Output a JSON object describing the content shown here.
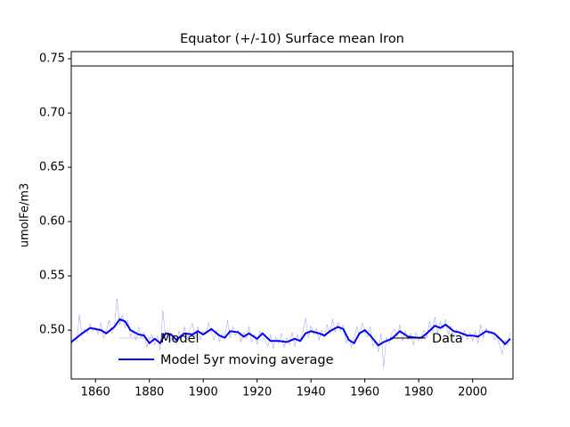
{
  "chart_data": {
    "type": "line",
    "title": "Equator (+/-10) Surface mean Iron",
    "ylabel": "umolFe/m3",
    "xlim": [
      1851,
      2015
    ],
    "ylim": [
      0.455,
      0.7566
    ],
    "xticks": [
      1860,
      1880,
      1900,
      1920,
      1940,
      1960,
      1980,
      2000
    ],
    "yticks": [
      {
        "value": 0.5,
        "label": "0.50"
      },
      0.55,
      {
        "value": 0.6,
        "label": "0.60"
      },
      0.65,
      {
        "value": 0.7,
        "label": "0.70"
      },
      0.75
    ],
    "series": [
      {
        "name": "Model",
        "color": "#0000ff",
        "linewidth": 0.5,
        "opacity": 0.4,
        "x": [
          1851,
          1852,
          1853,
          1854,
          1855,
          1856,
          1857,
          1858,
          1859,
          1860,
          1861,
          1862,
          1863,
          1864,
          1865,
          1866,
          1867,
          1868,
          1869,
          1870,
          1871,
          1872,
          1873,
          1874,
          1875,
          1876,
          1877,
          1878,
          1879,
          1880,
          1881,
          1882,
          1883,
          1884,
          1885,
          1886,
          1887,
          1888,
          1889,
          1890,
          1891,
          1892,
          1893,
          1894,
          1895,
          1896,
          1897,
          1898,
          1899,
          1900,
          1901,
          1902,
          1903,
          1904,
          1905,
          1906,
          1907,
          1908,
          1909,
          1910,
          1911,
          1912,
          1913,
          1914,
          1915,
          1916,
          1917,
          1918,
          1919,
          1920,
          1921,
          1922,
          1923,
          1924,
          1925,
          1926,
          1927,
          1928,
          1929,
          1930,
          1931,
          1932,
          1933,
          1934,
          1935,
          1936,
          1937,
          1938,
          1939,
          1940,
          1941,
          1942,
          1943,
          1944,
          1945,
          1946,
          1947,
          1948,
          1949,
          1950,
          1951,
          1952,
          1953,
          1954,
          1955,
          1956,
          1957,
          1958,
          1959,
          1960,
          1961,
          1962,
          1963,
          1964,
          1965,
          1966,
          1967,
          1968,
          1969,
          1970,
          1971,
          1972,
          1973,
          1974,
          1975,
          1976,
          1977,
          1978,
          1979,
          1980,
          1981,
          1982,
          1983,
          1984,
          1985,
          1986,
          1987,
          1988,
          1989,
          1990,
          1991,
          1992,
          1993,
          1994,
          1995,
          1996,
          1997,
          1998,
          1999,
          2000,
          2001,
          2002,
          2003,
          2004,
          2005,
          2006,
          2007,
          2008,
          2009,
          2010,
          2011,
          2012,
          2013,
          2014
        ],
        "values": [
          0.486,
          0.492,
          0.489,
          0.514,
          0.495,
          0.501,
          0.497,
          0.506,
          0.499,
          0.503,
          0.496,
          0.507,
          0.493,
          0.499,
          0.509,
          0.497,
          0.503,
          0.529,
          0.505,
          0.514,
          0.502,
          0.509,
          0.494,
          0.5,
          0.491,
          0.503,
          0.493,
          0.498,
          0.484,
          0.492,
          0.496,
          0.486,
          0.495,
          0.482,
          0.518,
          0.494,
          0.499,
          0.49,
          0.496,
          0.487,
          0.499,
          0.493,
          0.503,
          0.491,
          0.5,
          0.506,
          0.494,
          0.503,
          0.491,
          0.499,
          0.496,
          0.507,
          0.499,
          0.491,
          0.5,
          0.489,
          0.497,
          0.495,
          0.509,
          0.493,
          0.503,
          0.495,
          0.5,
          0.489,
          0.498,
          0.492,
          0.503,
          0.489,
          0.496,
          0.487,
          0.499,
          0.494,
          0.49,
          0.485,
          0.496,
          0.483,
          0.494,
          0.488,
          0.497,
          0.484,
          0.493,
          0.487,
          0.498,
          0.485,
          0.496,
          0.49,
          0.499,
          0.511,
          0.493,
          0.504,
          0.496,
          0.502,
          0.491,
          0.5,
          0.493,
          0.505,
          0.497,
          0.51,
          0.498,
          0.507,
          0.499,
          0.505,
          0.488,
          0.494,
          0.484,
          0.492,
          0.503,
          0.495,
          0.507,
          0.498,
          0.494,
          0.503,
          0.485,
          0.49,
          0.48,
          0.497,
          0.466,
          0.493,
          0.488,
          0.497,
          0.501,
          0.494,
          0.505,
          0.49,
          0.499,
          0.491,
          0.497,
          0.486,
          0.498,
          0.49,
          0.495,
          0.5,
          0.493,
          0.508,
          0.499,
          0.512,
          0.497,
          0.508,
          0.501,
          0.51,
          0.496,
          0.504,
          0.493,
          0.501,
          0.497,
          0.492,
          0.5,
          0.491,
          0.498,
          0.49,
          0.499,
          0.488,
          0.505,
          0.493,
          0.502,
          0.496,
          0.499,
          0.491,
          0.494,
          0.486,
          0.478,
          0.491,
          0.486,
          0.498
        ]
      },
      {
        "name": "Model 5yr moving average",
        "color": "#0000ff",
        "linewidth": 2,
        "opacity": 1,
        "x": [
          1851,
          1855,
          1858,
          1862,
          1864,
          1867,
          1869,
          1871,
          1873,
          1876,
          1878,
          1880,
          1882,
          1884,
          1886,
          1888,
          1890,
          1893,
          1896,
          1898,
          1900,
          1903,
          1906,
          1908,
          1910,
          1913,
          1915,
          1917,
          1920,
          1922,
          1925,
          1928,
          1931,
          1934,
          1936,
          1938,
          1940,
          1943,
          1945,
          1947,
          1950,
          1952,
          1954,
          1956,
          1958,
          1960,
          1962,
          1965,
          1967,
          1970,
          1973,
          1976,
          1979,
          1981,
          1983,
          1986,
          1988,
          1990,
          1993,
          1995,
          1998,
          2000,
          2002,
          2005,
          2008,
          2011,
          2012,
          2014
        ],
        "values": [
          0.489,
          0.497,
          0.502,
          0.5,
          0.497,
          0.503,
          0.51,
          0.508,
          0.5,
          0.496,
          0.495,
          0.488,
          0.492,
          0.488,
          0.497,
          0.496,
          0.491,
          0.497,
          0.496,
          0.499,
          0.496,
          0.501,
          0.495,
          0.493,
          0.499,
          0.498,
          0.494,
          0.497,
          0.492,
          0.497,
          0.49,
          0.49,
          0.489,
          0.492,
          0.49,
          0.497,
          0.499,
          0.497,
          0.495,
          0.499,
          0.503,
          0.501,
          0.491,
          0.488,
          0.497,
          0.5,
          0.495,
          0.486,
          0.489,
          0.492,
          0.499,
          0.494,
          0.493,
          0.493,
          0.497,
          0.504,
          0.502,
          0.505,
          0.499,
          0.498,
          0.495,
          0.495,
          0.494,
          0.499,
          0.497,
          0.49,
          0.487,
          0.492
        ]
      },
      {
        "name": "Data",
        "color": "#000000",
        "linewidth": 1,
        "opacity": 1,
        "x": [
          1851,
          2015
        ],
        "values": [
          0.7434,
          0.7434
        ]
      }
    ]
  }
}
